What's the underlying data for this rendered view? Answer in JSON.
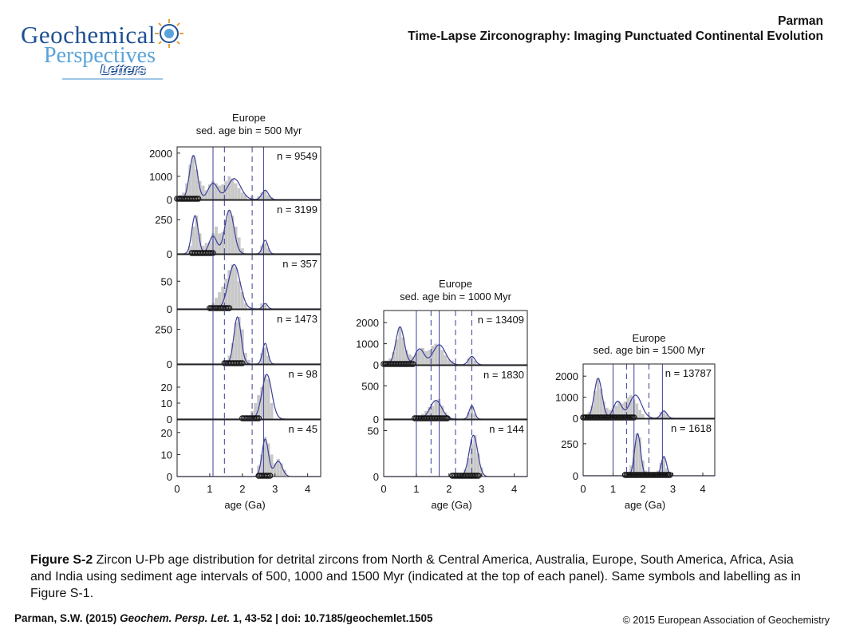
{
  "logo": {
    "line1": "Geochemical",
    "line2": "Perspectives",
    "line3": "Letters"
  },
  "header": {
    "author": "Parman",
    "title": "Time-Lapse Zirconography: Imaging Punctuated Continental Evolution"
  },
  "caption": {
    "label": "Figure S-2",
    "text": " Zircon U-Pb age distribution for detrital zircons from North & Central America, Australia, Europe, South America, Africa, Asia and India using sediment age intervals of 500, 1000 and 1500 Myr (indicated at the top of each panel). Same symbols and labelling as in Figure S-1."
  },
  "footer": {
    "citation_author": "Parman, S.W. (2015) ",
    "citation_journal": "Geochem. Persp. Let.",
    "citation_rest": " 1, 43-52 | doi: 10.7185/geochemlet.1505",
    "copyright": "© 2015 European Association of Geochemistry"
  },
  "colors": {
    "curve": "#3c3f9a",
    "bars": "#c8c8c8",
    "header_blue": "#1f4f93"
  },
  "chart_data": [
    {
      "type": "bar",
      "title": "Europe",
      "subtitle": "sed. age bin = 500 Myr",
      "xlabel": "age (Ga)",
      "xticks": [
        "0",
        "1",
        "2",
        "3",
        "4"
      ],
      "xlim": [
        0,
        4.4
      ],
      "vlines_solid": [
        1.1,
        2.65
      ],
      "vlines_dashed": [
        1.45,
        2.3
      ],
      "panels": [
        {
          "n": "n = 9549",
          "yticks": [
            "0",
            "1000",
            "2000"
          ],
          "ymax": 2000,
          "ylim": [
            0,
            2200
          ],
          "bars_x": [
            0.1,
            0.2,
            0.3,
            0.4,
            0.5,
            0.6,
            0.7,
            0.8,
            0.9,
            1.0,
            1.1,
            1.2,
            1.3,
            1.4,
            1.5,
            1.6,
            1.7,
            1.8,
            1.9,
            2.0,
            2.1,
            2.3,
            2.5,
            2.6,
            2.7,
            2.8,
            2.9
          ],
          "bars_y": [
            200,
            300,
            700,
            1500,
            1900,
            1300,
            800,
            600,
            400,
            650,
            800,
            700,
            600,
            650,
            800,
            1000,
            900,
            700,
            500,
            300,
            200,
            150,
            150,
            300,
            400,
            200,
            100
          ],
          "peaks": [
            [
              0.5,
              1900,
              0.12
            ],
            [
              1.1,
              700,
              0.15
            ],
            [
              1.75,
              900,
              0.2
            ],
            [
              2.7,
              400,
              0.1
            ]
          ],
          "marker_range": [
            0.0,
            0.65
          ]
        },
        {
          "n": "n = 3199",
          "yticks": [
            "0",
            "250"
          ],
          "ymax": 250,
          "ylim": [
            0,
            380
          ],
          "bars_x": [
            0.4,
            0.5,
            0.6,
            0.7,
            0.8,
            0.9,
            1.0,
            1.1,
            1.2,
            1.3,
            1.4,
            1.5,
            1.6,
            1.7,
            1.8,
            1.9,
            2.0,
            2.6,
            2.7,
            2.8
          ],
          "bars_y": [
            60,
            200,
            280,
            150,
            60,
            80,
            90,
            150,
            200,
            150,
            160,
            250,
            320,
            280,
            200,
            120,
            40,
            60,
            80,
            40
          ],
          "peaks": [
            [
              0.55,
              280,
              0.1
            ],
            [
              1.1,
              130,
              0.12
            ],
            [
              1.6,
              320,
              0.14
            ],
            [
              2.7,
              100,
              0.08
            ]
          ],
          "marker_range": [
            0.45,
            1.1
          ]
        },
        {
          "n": "n = 357",
          "yticks": [
            "0",
            "50"
          ],
          "ymax": 50,
          "ylim": [
            0,
            95
          ],
          "bars_x": [
            1.0,
            1.1,
            1.2,
            1.3,
            1.4,
            1.5,
            1.6,
            1.7,
            1.8,
            1.9,
            2.0,
            2.1,
            2.6,
            2.7
          ],
          "bars_y": [
            5,
            10,
            20,
            30,
            40,
            55,
            70,
            80,
            75,
            50,
            30,
            10,
            10,
            8
          ],
          "peaks": [
            [
              1.75,
              80,
              0.18
            ],
            [
              2.7,
              10,
              0.07
            ]
          ],
          "marker_range": [
            1.0,
            1.6
          ]
        },
        {
          "n": "n = 1473",
          "yticks": [
            "0",
            "250"
          ],
          "ymax": 250,
          "ylim": [
            0,
            380
          ],
          "bars_x": [
            1.5,
            1.6,
            1.7,
            1.8,
            1.9,
            2.0,
            2.1,
            2.2,
            2.6,
            2.7,
            2.8
          ],
          "bars_y": [
            20,
            60,
            150,
            300,
            340,
            250,
            80,
            30,
            80,
            120,
            60
          ],
          "peaks": [
            [
              1.85,
              340,
              0.11
            ],
            [
              2.7,
              150,
              0.08
            ]
          ],
          "marker_range": [
            1.45,
            2.0
          ]
        },
        {
          "n": "n = 98",
          "yticks": [
            "0",
            "10",
            "20"
          ],
          "ymax": 20,
          "ylim": [
            0,
            33
          ],
          "bars_x": [
            2.2,
            2.3,
            2.4,
            2.5,
            2.6,
            2.7,
            2.8,
            2.9
          ],
          "bars_y": [
            2,
            5,
            10,
            15,
            20,
            28,
            25,
            10
          ],
          "peaks": [
            [
              2.75,
              28,
              0.15
            ]
          ],
          "marker_range": [
            2.0,
            2.5
          ]
        },
        {
          "n": "n = 45",
          "yticks": [
            "0",
            "10",
            "20"
          ],
          "ymax": 20,
          "ylim": [
            0,
            25
          ],
          "bars_x": [
            2.5,
            2.6,
            2.7,
            2.8,
            2.9,
            3.0,
            3.1,
            3.2,
            3.3
          ],
          "bars_y": [
            5,
            10,
            18,
            15,
            10,
            6,
            8,
            6,
            3
          ],
          "peaks": [
            [
              2.7,
              17,
              0.1
            ],
            [
              3.1,
              7,
              0.12
            ]
          ],
          "marker_range": [
            2.5,
            2.85
          ]
        }
      ]
    },
    {
      "type": "bar",
      "title": "Europe",
      "subtitle": "sed. age bin = 1000 Myr",
      "xlabel": "age (Ga)",
      "xticks": [
        "0",
        "1",
        "2",
        "3",
        "4"
      ],
      "xlim": [
        0,
        4.4
      ],
      "vlines_solid": [
        1.0,
        1.7
      ],
      "vlines_dashed": [
        1.45,
        2.2,
        2.7
      ],
      "panels": [
        {
          "n": "n = 13409",
          "yticks": [
            "0",
            "1000",
            "2000"
          ],
          "ymax": 2000,
          "ylim": [
            0,
            2500
          ],
          "bars_x": [
            0.1,
            0.2,
            0.3,
            0.4,
            0.5,
            0.6,
            0.7,
            0.8,
            0.9,
            1.0,
            1.1,
            1.2,
            1.3,
            1.4,
            1.5,
            1.6,
            1.7,
            1.8,
            1.9,
            2.0,
            2.1,
            2.6,
            2.7,
            2.8
          ],
          "bars_y": [
            200,
            300,
            600,
            1200,
            1800,
            1300,
            700,
            500,
            400,
            600,
            700,
            800,
            650,
            700,
            900,
            1000,
            900,
            700,
            450,
            250,
            200,
            300,
            400,
            200
          ],
          "peaks": [
            [
              0.5,
              1800,
              0.13
            ],
            [
              1.1,
              750,
              0.14
            ],
            [
              1.7,
              950,
              0.19
            ],
            [
              2.7,
              400,
              0.1
            ]
          ],
          "marker_range": [
            0.0,
            0.9
          ]
        },
        {
          "n": "n = 1830",
          "yticks": [
            "0",
            "500"
          ],
          "ymax": 500,
          "ylim": [
            0,
            780
          ],
          "bars_x": [
            1.0,
            1.1,
            1.2,
            1.3,
            1.4,
            1.5,
            1.6,
            1.7,
            1.8,
            1.9,
            2.0,
            2.6,
            2.7,
            2.8
          ],
          "bars_y": [
            20,
            40,
            80,
            120,
            180,
            200,
            280,
            300,
            200,
            100,
            40,
            100,
            200,
            80
          ],
          "peaks": [
            [
              1.6,
              280,
              0.18
            ],
            [
              2.7,
              200,
              0.08
            ]
          ],
          "marker_range": [
            0.95,
            1.95
          ]
        },
        {
          "n": "n = 144",
          "yticks": [
            "0",
            "50"
          ],
          "ymax": 50,
          "ylim": [
            0,
            60
          ],
          "bars_x": [
            2.4,
            2.5,
            2.6,
            2.7,
            2.8,
            2.9,
            3.0
          ],
          "bars_y": [
            3,
            8,
            20,
            35,
            45,
            25,
            10
          ],
          "peaks": [
            [
              2.75,
              45,
              0.13
            ]
          ],
          "marker_range": [
            2.1,
            2.9
          ]
        }
      ]
    },
    {
      "type": "bar",
      "title": "Europe",
      "subtitle": "sed. age bin = 1500 Myr",
      "xlabel": "age (Ga)",
      "xticks": [
        "0",
        "1",
        "2",
        "3",
        "4"
      ],
      "xlim": [
        0,
        4.4
      ],
      "vlines_solid": [
        1.0,
        1.7,
        2.65
      ],
      "vlines_dashed": [
        1.45,
        2.2
      ],
      "panels": [
        {
          "n": "n = 13787",
          "yticks": [
            "0",
            "1000",
            "2000"
          ],
          "ymax": 2000,
          "ylim": [
            0,
            2500
          ],
          "bars_x": [
            0.1,
            0.2,
            0.3,
            0.4,
            0.5,
            0.6,
            0.7,
            0.8,
            0.9,
            1.0,
            1.1,
            1.2,
            1.3,
            1.4,
            1.5,
            1.6,
            1.7,
            1.8,
            1.9,
            2.0,
            2.6,
            2.7,
            2.8
          ],
          "bars_y": [
            200,
            300,
            600,
            1300,
            1900,
            1400,
            800,
            500,
            400,
            500,
            600,
            800,
            700,
            800,
            1000,
            1100,
            900,
            700,
            400,
            200,
            300,
            350,
            200
          ],
          "peaks": [
            [
              0.5,
              1900,
              0.13
            ],
            [
              1.15,
              800,
              0.14
            ],
            [
              1.75,
              1100,
              0.2
            ],
            [
              2.7,
              350,
              0.1
            ]
          ],
          "marker_range": [
            0.0,
            1.7
          ]
        },
        {
          "n": "n = 1618",
          "yticks": [
            "0",
            "250"
          ],
          "ymax": 250,
          "ylim": [
            0,
            430
          ],
          "bars_x": [
            1.5,
            1.6,
            1.7,
            1.8,
            1.9,
            2.0,
            2.1,
            2.5,
            2.6,
            2.7,
            2.8
          ],
          "bars_y": [
            30,
            80,
            200,
            330,
            300,
            120,
            40,
            40,
            100,
            150,
            60
          ],
          "peaks": [
            [
              1.82,
              330,
              0.1
            ],
            [
              2.7,
              150,
              0.09
            ]
          ],
          "marker_range": [
            1.4,
            2.9
          ]
        }
      ]
    }
  ]
}
